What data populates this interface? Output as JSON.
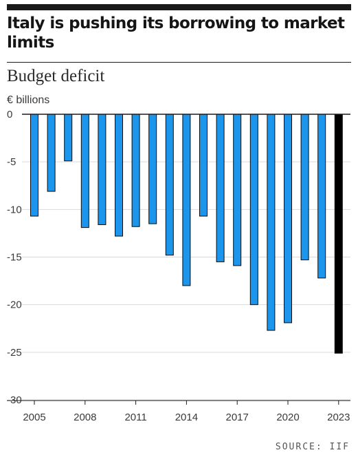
{
  "headline": "Italy is pushing its borrowing to market limits",
  "chart_data": {
    "type": "bar",
    "title": "Budget deficit",
    "ylabel": "€ billions",
    "xlabel": "",
    "source": "SOURCE: IIF",
    "x": [
      2005,
      2006,
      2007,
      2008,
      2009,
      2010,
      2011,
      2012,
      2013,
      2014,
      2015,
      2016,
      2017,
      2018,
      2019,
      2020,
      2021,
      2022,
      2023
    ],
    "values": [
      -10.7,
      -8.1,
      -4.9,
      -11.9,
      -11.6,
      -12.8,
      -11.8,
      -11.5,
      -14.8,
      -18.0,
      -10.7,
      -15.5,
      -15.9,
      -20.0,
      -22.7,
      -21.9,
      -15.3,
      -17.2,
      -25.1
    ],
    "highlight": [
      false,
      false,
      false,
      false,
      false,
      false,
      false,
      false,
      false,
      false,
      false,
      false,
      false,
      false,
      false,
      false,
      false,
      false,
      true
    ],
    "ylim": [
      -30,
      0
    ],
    "yticks": [
      0,
      -5,
      -10,
      -15,
      -20,
      -25,
      -30
    ],
    "xticks": [
      2005,
      2008,
      2011,
      2014,
      2017,
      2020,
      2023
    ],
    "grid": true,
    "legend": "none",
    "colors": {
      "bar": "#1c96ec",
      "highlight": "#000000",
      "edge": "#0a0a0a",
      "grid": "#d9d9d9",
      "axis": "#1a1a1a"
    }
  }
}
